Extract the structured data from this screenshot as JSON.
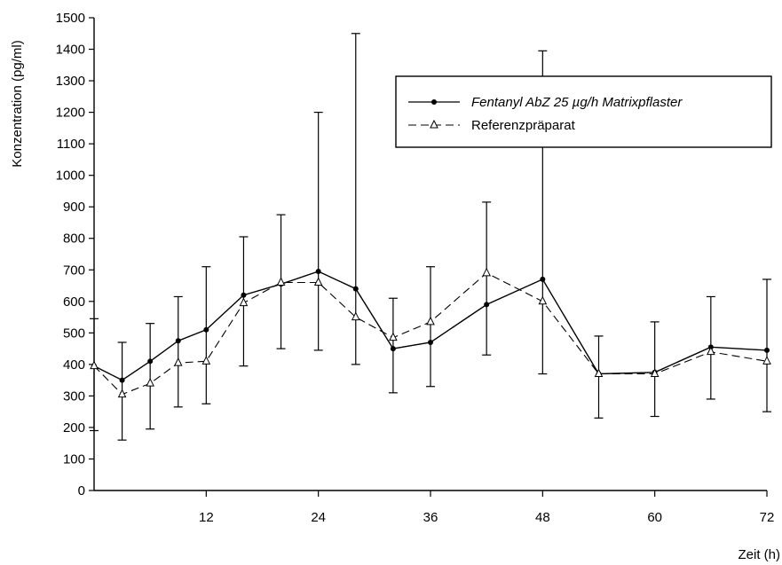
{
  "chart_data": {
    "type": "line",
    "xlabel": "Zeit (h)",
    "ylabel": "Konzentration (pg/ml)",
    "xlim": [
      0,
      72
    ],
    "ylim": [
      0,
      1500
    ],
    "xticks": [
      12,
      24,
      36,
      48,
      60,
      72
    ],
    "yticks": [
      0,
      100,
      200,
      300,
      400,
      500,
      600,
      700,
      800,
      900,
      1000,
      1100,
      1200,
      1300,
      1400,
      1500
    ],
    "grid": false,
    "legend_position": "top-right",
    "x": [
      0,
      3,
      6,
      9,
      12,
      16,
      20,
      24,
      28,
      32,
      36,
      42,
      48,
      54,
      60,
      66,
      72
    ],
    "series": [
      {
        "name": "Fentanyl AbZ 25 µg/h Matrixpflaster",
        "marker": "filled-circle",
        "line": "solid",
        "values": [
          395,
          350,
          410,
          475,
          510,
          620,
          655,
          695,
          640,
          450,
          470,
          590,
          670,
          370,
          375,
          455,
          445
        ],
        "error_upper": [
          545,
          470,
          530,
          615,
          710,
          805,
          875,
          1200,
          1450,
          610,
          710,
          915,
          1395,
          490,
          535,
          615,
          670
        ],
        "error_lower": [
          190,
          160,
          195,
          265,
          275,
          395,
          450,
          445,
          400,
          310,
          330,
          430,
          370,
          230,
          235,
          290,
          250
        ]
      },
      {
        "name": "Referenzpräparat",
        "marker": "open-triangle",
        "line": "dashed",
        "values": [
          395,
          305,
          340,
          405,
          410,
          595,
          660,
          660,
          550,
          485,
          535,
          690,
          600,
          370,
          370,
          440,
          410
        ]
      }
    ]
  }
}
